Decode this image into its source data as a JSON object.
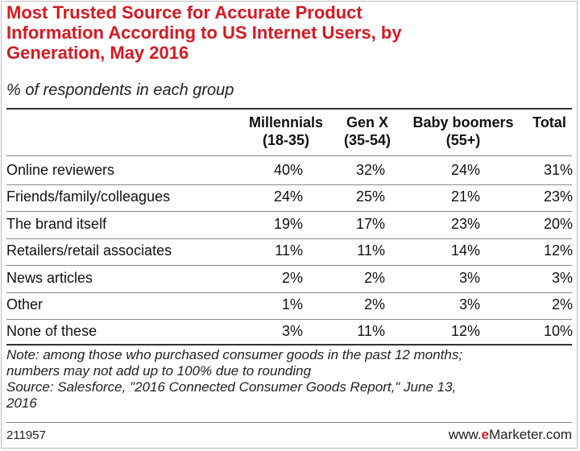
{
  "title_lines": [
    "Most Trusted Source for Accurate Product",
    "Information According to US Internet Users, by",
    "Generation, May 2016"
  ],
  "subtitle": "% of respondents in each group",
  "chart_data": {
    "type": "table",
    "title": "Most Trusted Source for Accurate Product Information According to US Internet Users, by Generation, May 2016",
    "subtitle": "% of respondents in each group",
    "columns": [
      {
        "line1": "Millennials",
        "line2": "(18-35)"
      },
      {
        "line1": "Gen X",
        "line2": "(35-54)"
      },
      {
        "line1": "Baby boomers",
        "line2": "(55+)"
      },
      {
        "line1": "Total",
        "line2": ""
      }
    ],
    "rows": [
      {
        "label": "Online reviewers",
        "values": [
          "40%",
          "32%",
          "24%",
          "31%"
        ]
      },
      {
        "label": "Friends/family/colleagues",
        "values": [
          "24%",
          "25%",
          "21%",
          "23%"
        ]
      },
      {
        "label": "The brand itself",
        "values": [
          "19%",
          "17%",
          "23%",
          "20%"
        ]
      },
      {
        "label": "Retailers/retail associates",
        "values": [
          "11%",
          "11%",
          "14%",
          "12%"
        ]
      },
      {
        "label": "News articles",
        "values": [
          "2%",
          "2%",
          "3%",
          "3%"
        ]
      },
      {
        "label": "Other",
        "values": [
          "1%",
          "2%",
          "3%",
          "2%"
        ]
      },
      {
        "label": "None of these",
        "values": [
          "3%",
          "11%",
          "12%",
          "10%"
        ]
      }
    ]
  },
  "notes": [
    "Note: among those who purchased consumer goods in the past 12 months;",
    "numbers may not add up to 100% due to rounding",
    "Source: Salesforce, \"2016 Connected Consumer Goods Report,\" June 13,",
    "2016"
  ],
  "footer": {
    "id": "211957",
    "brand_prefix": "www.",
    "brand_mark": "e",
    "brand_suffix": "Marketer.com"
  },
  "colors": {
    "title": "#d71920",
    "brand": "#d71920"
  }
}
